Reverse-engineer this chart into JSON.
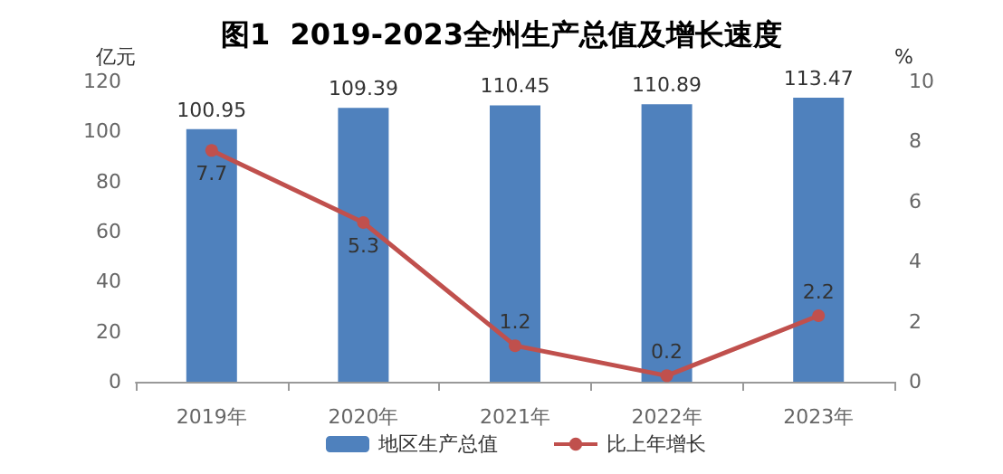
{
  "chart_data": {
    "type": "bar",
    "title": "图1  2019-2023全州生产总值及增长速度",
    "ylabel": "亿元",
    "y2label": "%",
    "categories": [
      "2019年",
      "2020年",
      "2021年",
      "2022年",
      "2023年"
    ],
    "series": [
      {
        "name": "地区生产总值",
        "color": "#4f81bd",
        "values": [
          100.95,
          109.39,
          110.45,
          110.89,
          113.47
        ]
      },
      {
        "name": "比上年增长",
        "type": "line",
        "axis": "y2",
        "color": "#c0504d",
        "values": [
          7.7,
          5.3,
          1.2,
          0.2,
          2.2
        ]
      }
    ],
    "ylim": [
      0,
      120
    ],
    "yticks": [
      0,
      20,
      40,
      60,
      80,
      100,
      120
    ],
    "y2lim": [
      0,
      10
    ],
    "y2ticks": [
      0,
      2,
      4,
      6,
      8,
      10
    ],
    "data_labels": true,
    "legend": "bottom",
    "marker": "circle",
    "grid": false
  }
}
